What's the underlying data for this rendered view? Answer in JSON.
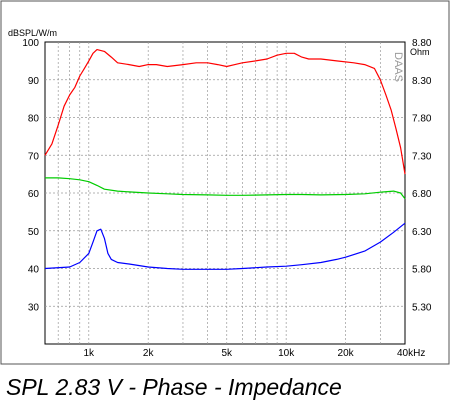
{
  "caption": "SPL 2.83 V - Phase - Impedance",
  "chart_data": {
    "type": "line",
    "ylabel_left": "dBSPL/W/m",
    "ylabel_right": "Ohm",
    "xlabel_unit": "Hz",
    "watermark": "DAAS",
    "x_scale": "log",
    "xlim": [
      600,
      40000
    ],
    "ylim_left": [
      20,
      100
    ],
    "ylim_right": [
      4.8,
      8.8
    ],
    "grid": true,
    "left_ticks": [
      30,
      40,
      50,
      60,
      70,
      80,
      90,
      100
    ],
    "right_ticks": [
      "5.30",
      "5.80",
      "6.30",
      "6.80",
      "7.30",
      "7.80",
      "8.30",
      "8.80"
    ],
    "x_ticks": [
      {
        "value": 1000,
        "label": "1k"
      },
      {
        "value": 2000,
        "label": "2k"
      },
      {
        "value": 5000,
        "label": "5k"
      },
      {
        "value": 10000,
        "label": "10k"
      },
      {
        "value": 20000,
        "label": "20k"
      },
      {
        "value": 40000,
        "label": "40kHz"
      }
    ],
    "series": [
      {
        "color": "#ff0000",
        "axis": "left",
        "points": [
          [
            600,
            70
          ],
          [
            650,
            73
          ],
          [
            700,
            78
          ],
          [
            750,
            83
          ],
          [
            800,
            86
          ],
          [
            850,
            88
          ],
          [
            900,
            91
          ],
          [
            950,
            93
          ],
          [
            1000,
            95
          ],
          [
            1050,
            97
          ],
          [
            1100,
            98
          ],
          [
            1200,
            97.5
          ],
          [
            1300,
            96
          ],
          [
            1400,
            94.5
          ],
          [
            1600,
            94
          ],
          [
            1800,
            93.5
          ],
          [
            2000,
            94
          ],
          [
            2200,
            94
          ],
          [
            2500,
            93.5
          ],
          [
            3000,
            94
          ],
          [
            3500,
            94.5
          ],
          [
            4000,
            94.5
          ],
          [
            4500,
            94
          ],
          [
            5000,
            93.5
          ],
          [
            5500,
            94
          ],
          [
            6000,
            94.5
          ],
          [
            7000,
            95
          ],
          [
            8000,
            95.5
          ],
          [
            9000,
            96.5
          ],
          [
            10000,
            97
          ],
          [
            11000,
            97
          ],
          [
            12000,
            96
          ],
          [
            13000,
            95.5
          ],
          [
            15000,
            95.5
          ],
          [
            18000,
            95
          ],
          [
            22000,
            94.5
          ],
          [
            25000,
            94
          ],
          [
            28000,
            93
          ],
          [
            30000,
            90
          ],
          [
            32000,
            86
          ],
          [
            34000,
            82
          ],
          [
            36000,
            77
          ],
          [
            38000,
            72
          ],
          [
            40000,
            65
          ]
        ]
      },
      {
        "color": "#00cc00",
        "axis": "left",
        "points": [
          [
            600,
            64
          ],
          [
            700,
            64
          ],
          [
            800,
            63.8
          ],
          [
            900,
            63.5
          ],
          [
            1000,
            63
          ],
          [
            1100,
            62
          ],
          [
            1200,
            61
          ],
          [
            1400,
            60.5
          ],
          [
            1600,
            60.3
          ],
          [
            2000,
            60
          ],
          [
            2500,
            59.8
          ],
          [
            3000,
            59.6
          ],
          [
            4000,
            59.5
          ],
          [
            5000,
            59.4
          ],
          [
            6000,
            59.4
          ],
          [
            8000,
            59.5
          ],
          [
            10000,
            59.6
          ],
          [
            12000,
            59.6
          ],
          [
            15000,
            59.5
          ],
          [
            20000,
            59.6
          ],
          [
            25000,
            59.8
          ],
          [
            30000,
            60.2
          ],
          [
            35000,
            60.5
          ],
          [
            38000,
            60
          ],
          [
            40000,
            58.5
          ]
        ]
      },
      {
        "color": "#0000ff",
        "axis": "right",
        "points": [
          [
            600,
            5.8
          ],
          [
            800,
            5.82
          ],
          [
            900,
            5.88
          ],
          [
            1000,
            6.0
          ],
          [
            1050,
            6.15
          ],
          [
            1100,
            6.3
          ],
          [
            1150,
            6.32
          ],
          [
            1200,
            6.2
          ],
          [
            1250,
            6.0
          ],
          [
            1300,
            5.92
          ],
          [
            1400,
            5.88
          ],
          [
            1600,
            5.86
          ],
          [
            2000,
            5.82
          ],
          [
            2500,
            5.8
          ],
          [
            3000,
            5.79
          ],
          [
            4000,
            5.79
          ],
          [
            5000,
            5.79
          ],
          [
            6000,
            5.8
          ],
          [
            7000,
            5.81
          ],
          [
            8000,
            5.82
          ],
          [
            10000,
            5.83
          ],
          [
            12000,
            5.85
          ],
          [
            15000,
            5.88
          ],
          [
            18000,
            5.92
          ],
          [
            20000,
            5.95
          ],
          [
            25000,
            6.03
          ],
          [
            30000,
            6.15
          ],
          [
            35000,
            6.28
          ],
          [
            40000,
            6.4
          ]
        ]
      }
    ]
  }
}
